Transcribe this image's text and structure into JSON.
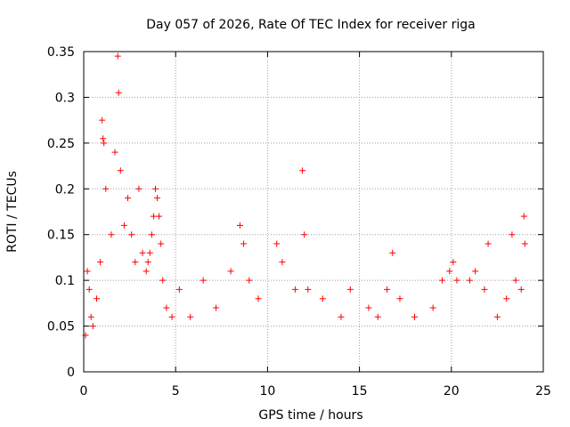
{
  "chart_data": {
    "type": "scatter",
    "title": "Day 057 of 2026, Rate Of TEC Index for receiver riga",
    "xlabel": "GPS time / hours",
    "ylabel": "ROTI / TECUs",
    "xlim": [
      0,
      25
    ],
    "ylim": [
      0,
      0.35
    ],
    "x_ticks": [
      0,
      5,
      10,
      15,
      20,
      25
    ],
    "y_ticks": [
      0,
      0.05,
      0.1,
      0.15,
      0.2,
      0.25,
      0.3,
      0.35
    ],
    "x_tick_labels": [
      "0",
      "5",
      "10",
      "15",
      "20",
      "25"
    ],
    "y_tick_labels": [
      "0",
      "0.05",
      "0.1",
      "0.15",
      "0.2",
      "0.25",
      "0.3",
      "0.35"
    ],
    "grid": true,
    "marker": "+",
    "marker_color": "#ff0000",
    "series": [
      {
        "x": [
          0.1,
          0.2,
          0.3,
          0.4,
          0.5,
          0.7,
          0.9,
          1.0,
          1.05,
          1.1,
          1.2,
          1.5,
          1.7,
          1.85,
          1.9,
          2.0,
          2.2,
          2.4,
          2.6,
          2.8,
          3.0,
          3.2,
          3.4,
          3.5,
          3.6,
          3.7,
          3.8,
          3.9,
          4.0,
          4.1,
          4.2,
          4.3,
          4.5,
          4.8,
          5.2,
          5.8,
          6.5,
          7.2,
          8.0,
          8.5,
          8.7,
          9.0,
          9.5,
          10.5,
          10.8,
          11.5,
          11.9,
          12.0,
          12.2,
          13.0,
          14.0,
          14.5,
          15.5,
          16.0,
          16.5,
          16.8,
          17.2,
          18.0,
          19.0,
          19.5,
          19.9,
          20.1,
          20.3,
          21.0,
          21.3,
          21.8,
          22.0,
          22.5,
          23.0,
          23.3,
          23.5,
          23.8,
          23.95,
          24.0
        ],
        "y": [
          0.04,
          0.11,
          0.09,
          0.06,
          0.05,
          0.08,
          0.12,
          0.275,
          0.255,
          0.25,
          0.2,
          0.15,
          0.24,
          0.345,
          0.305,
          0.22,
          0.16,
          0.19,
          0.15,
          0.12,
          0.2,
          0.13,
          0.11,
          0.12,
          0.13,
          0.15,
          0.17,
          0.2,
          0.19,
          0.17,
          0.14,
          0.1,
          0.07,
          0.06,
          0.09,
          0.06,
          0.1,
          0.07,
          0.11,
          0.16,
          0.14,
          0.1,
          0.08,
          0.14,
          0.12,
          0.09,
          0.22,
          0.15,
          0.09,
          0.08,
          0.06,
          0.09,
          0.07,
          0.06,
          0.09,
          0.13,
          0.08,
          0.06,
          0.07,
          0.1,
          0.11,
          0.12,
          0.1,
          0.1,
          0.11,
          0.09,
          0.14,
          0.06,
          0.08,
          0.15,
          0.1,
          0.09,
          0.17,
          0.14
        ]
      }
    ]
  }
}
